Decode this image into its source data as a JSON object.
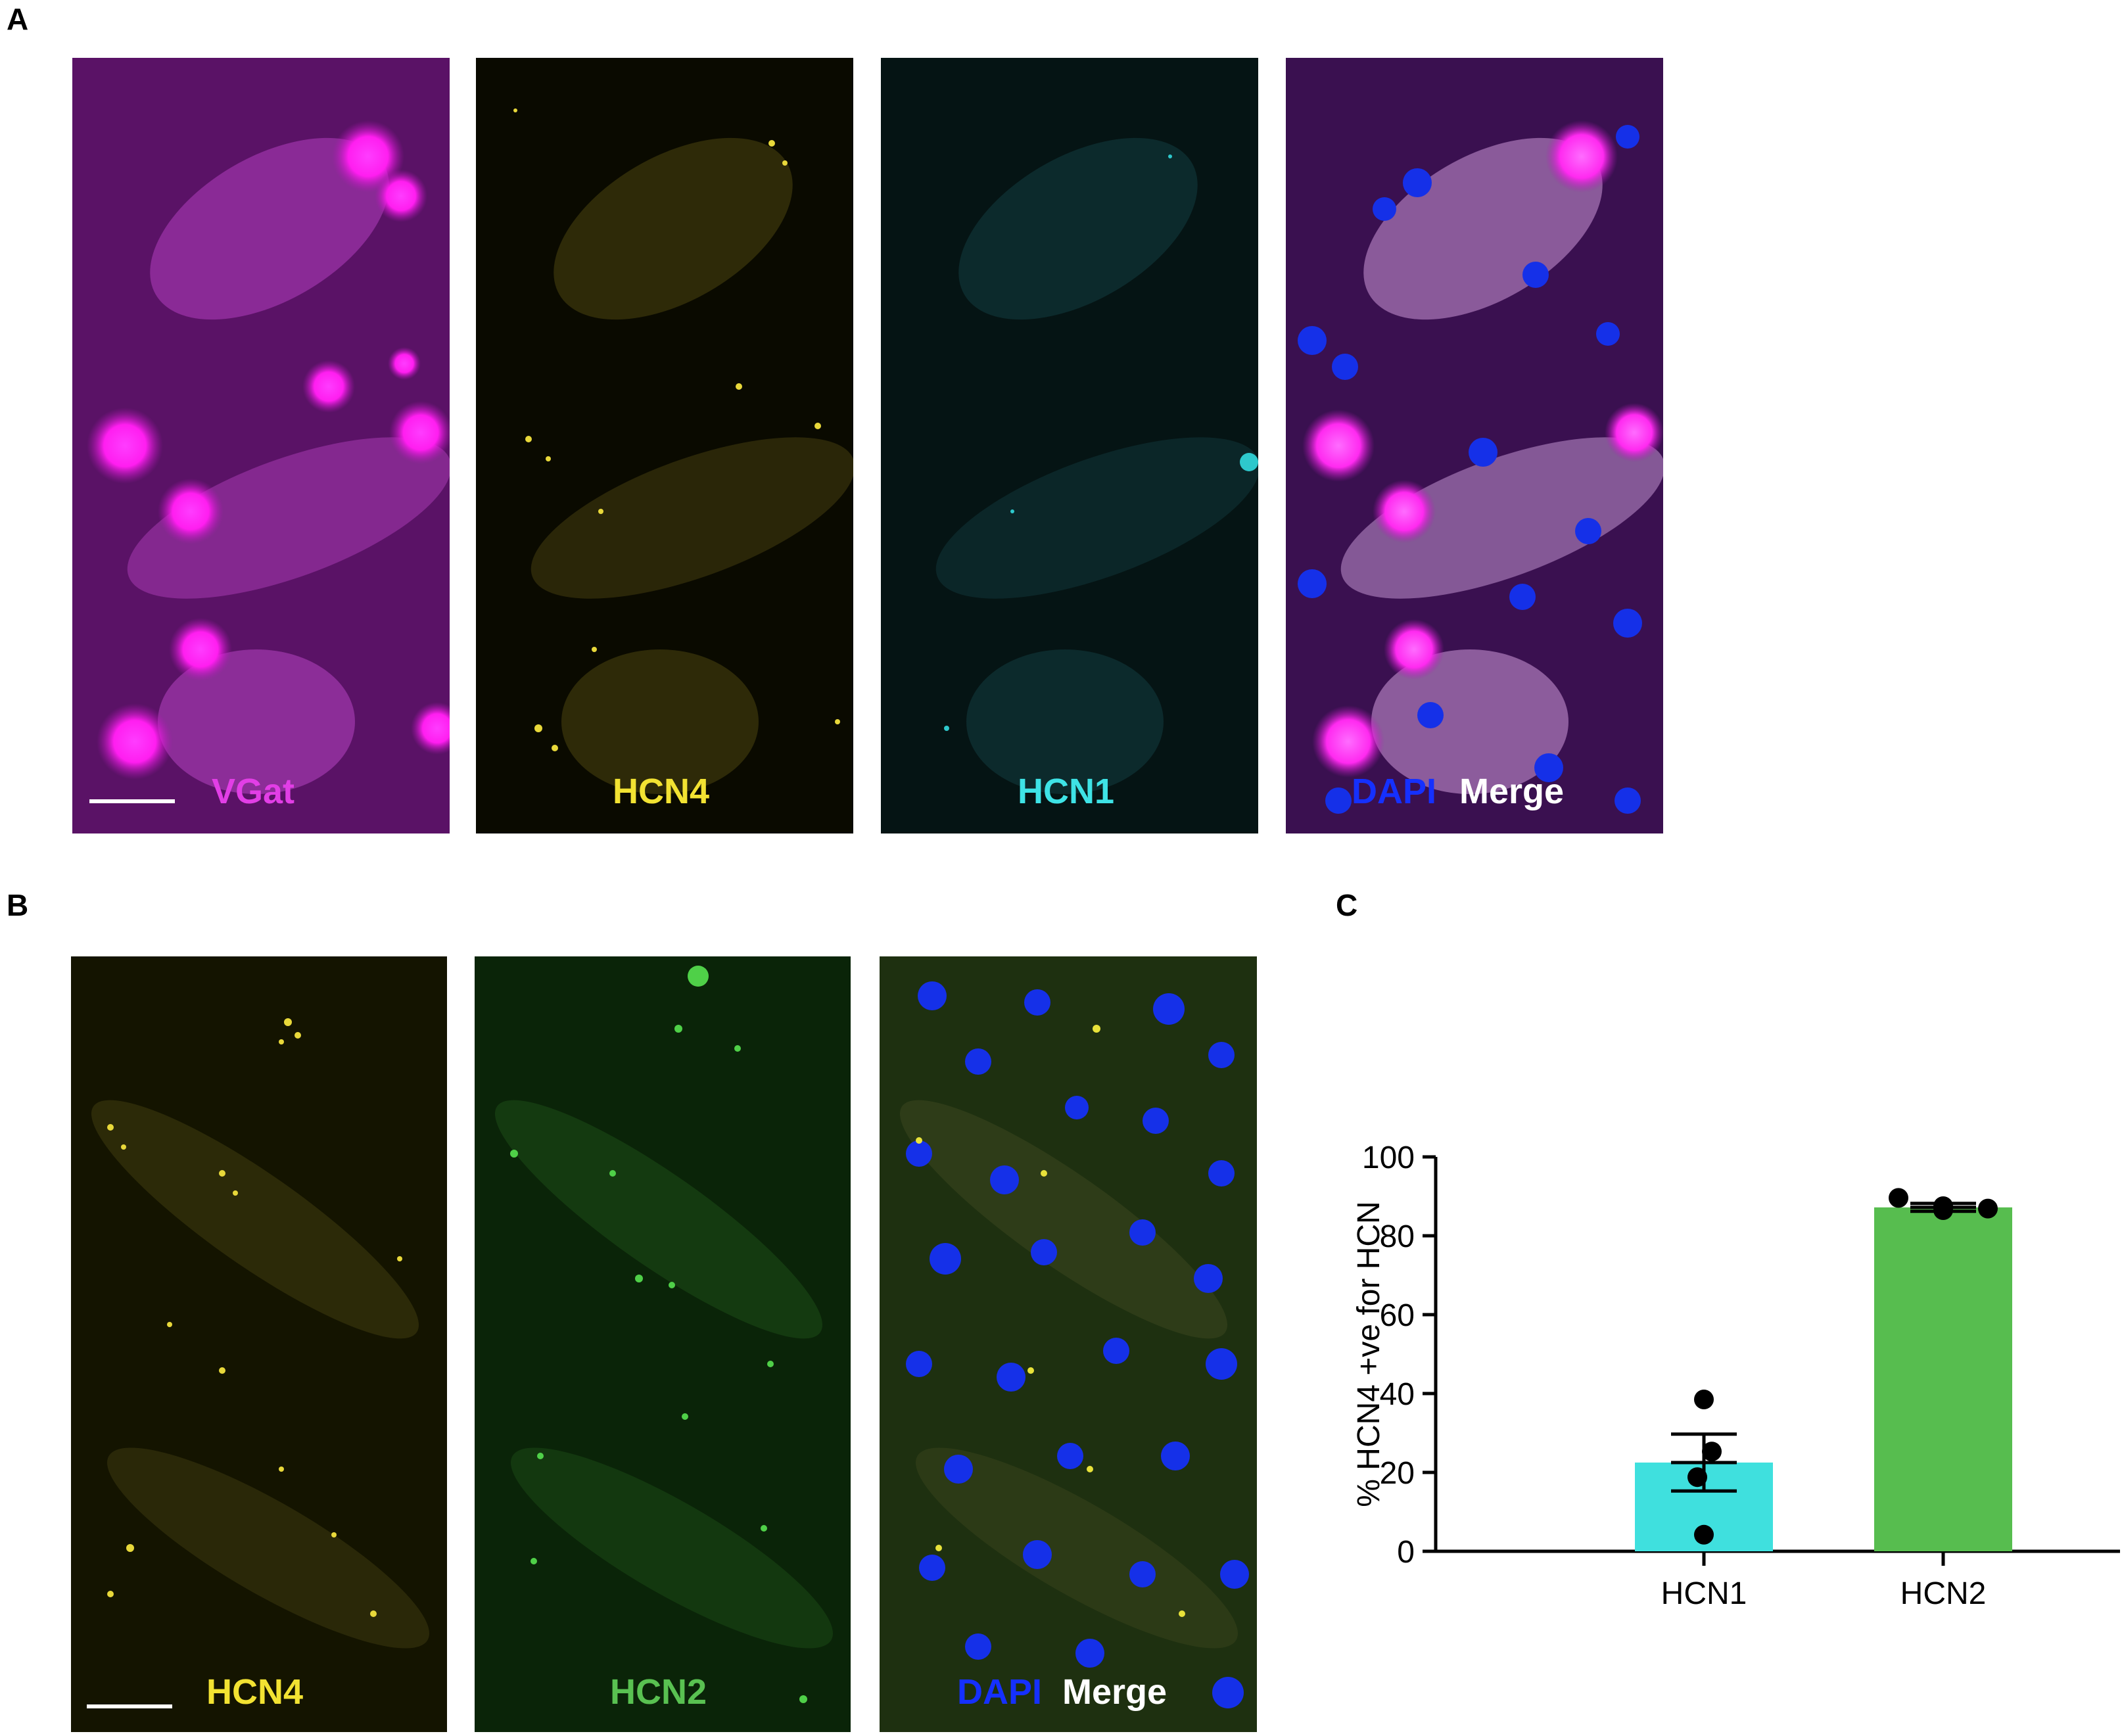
{
  "panel_labels": {
    "a": "A",
    "b": "B",
    "c": "C"
  },
  "panel_a": {
    "images": [
      {
        "channel": "vgat",
        "label": "VGat",
        "color": "#e23ee6"
      },
      {
        "channel": "hcn4",
        "label": "HCN4",
        "color": "#f2e232"
      },
      {
        "channel": "hcn1",
        "label": "HCN1",
        "color": "#3ee3e6"
      },
      {
        "channel": "merge",
        "label_dapi": "DAPI",
        "label_merge": "Merge",
        "dapi_color": "#1530ff",
        "merge_color": "#ffffff"
      }
    ]
  },
  "panel_b": {
    "images": [
      {
        "channel": "hcn4",
        "label": "HCN4",
        "color": "#f2e232"
      },
      {
        "channel": "hcn2",
        "label": "HCN2",
        "color": "#59c151"
      },
      {
        "channel": "merge",
        "label_dapi": "DAPI",
        "label_merge": "Merge",
        "dapi_color": "#1530ff",
        "merge_color": "#ffffff"
      }
    ]
  },
  "chart_data": {
    "type": "bar",
    "categories": [
      "HCN1",
      "HCN2"
    ],
    "values": [
      22.5,
      87.2
    ],
    "sem": [
      7.2,
      1.0
    ],
    "points": [
      [
        38.5,
        25.3,
        18.8,
        4.2
      ],
      [
        89.6,
        87.5,
        86.5,
        86.9
      ]
    ],
    "colors": [
      "#3fe0de",
      "#57bd4f"
    ],
    "title": "",
    "xlabel": "",
    "ylabel": "% HCN4 +ve for HCN",
    "ylim": [
      0,
      100
    ],
    "yticks": [
      0,
      20,
      40,
      60,
      80,
      100
    ],
    "grid": false
  }
}
